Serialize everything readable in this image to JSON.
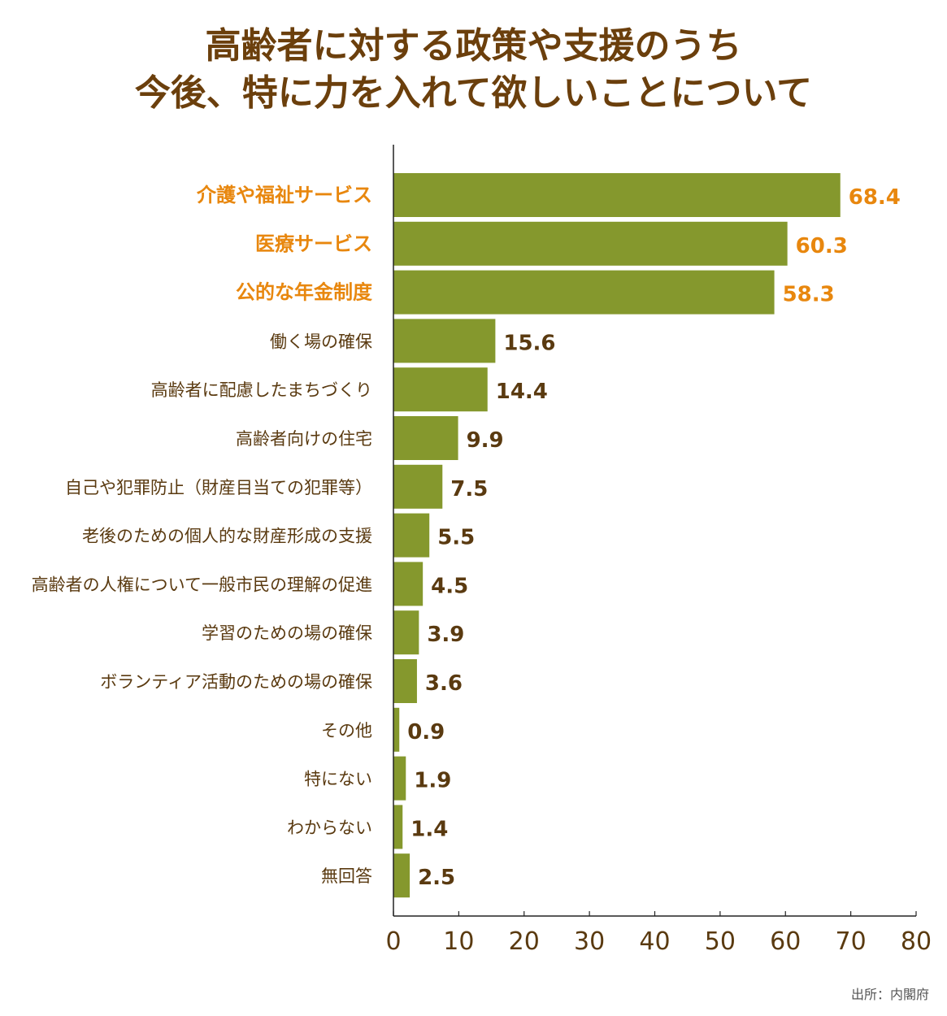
{
  "chart_data": {
    "type": "bar",
    "orientation": "horizontal",
    "title": [
      "高齢者に対する政策や支援のうち",
      "今後、特に力を入れて欲しいことについて"
    ],
    "categories": [
      "介護や福祉サービス",
      "医療サービス",
      "公的な年金制度",
      "働く場の確保",
      "高齢者に配慮したまちづくり",
      "高齢者向けの住宅",
      "自己や犯罪防止（財産目当ての犯罪等）",
      "老後のための個人的な財産形成の支援",
      "高齢者の人権について一般市民の理解の促進",
      "学習のための場の確保",
      "ボランティア活動のための場の確保",
      "その他",
      "特にない",
      "わからない",
      "無回答"
    ],
    "values": [
      68.4,
      60.3,
      58.3,
      15.6,
      14.4,
      9.9,
      7.5,
      5.5,
      4.5,
      3.9,
      3.6,
      0.9,
      1.9,
      1.4,
      2.5
    ],
    "value_labels": [
      "68.4",
      "60.3",
      "58.3",
      "15.6",
      "14.4",
      "9.9",
      "7.5",
      "5.5",
      "4.5",
      "3.9",
      "3.6",
      "0.9",
      "1.9",
      "1.4",
      "2.5"
    ],
    "highlighted": [
      true,
      true,
      true,
      false,
      false,
      false,
      false,
      false,
      false,
      false,
      false,
      false,
      false,
      false,
      false
    ],
    "xlim": [
      0,
      80
    ],
    "xticks": [
      "0",
      "10",
      "20",
      "30",
      "40",
      "50",
      "60",
      "70",
      "80"
    ],
    "xlabel": "",
    "ylabel": "",
    "grid": false,
    "colors": {
      "bar": "#85982d",
      "text": "#5a3a10",
      "highlight": "#e8870e",
      "title": "#6b3f0c"
    }
  },
  "source": "出所：内閣府"
}
